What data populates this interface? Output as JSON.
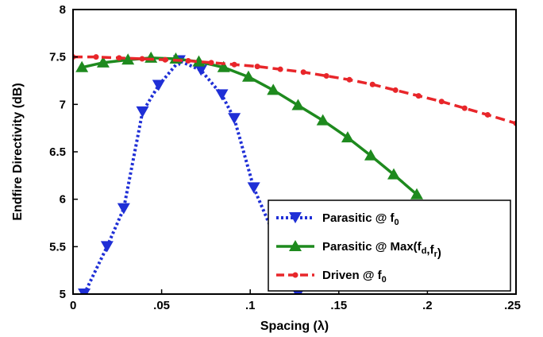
{
  "chart_data": {
    "type": "line",
    "xlabel": "Spacing (λ)",
    "ylabel": "Endfire Directivity (dB)",
    "xlim": [
      0,
      0.25
    ],
    "ylim": [
      5,
      8
    ],
    "x_ticks": [
      0,
      0.05,
      0.1,
      0.15,
      0.2,
      0.25
    ],
    "x_tick_labels": [
      "0",
      ".05",
      ".1",
      ".15",
      ".2",
      ".25"
    ],
    "y_ticks": [
      5,
      5.5,
      6,
      6.5,
      7,
      7.5,
      8
    ],
    "y_tick_labels": [
      "5",
      "5.5",
      "6",
      "6.5",
      "7",
      "7.5",
      "8"
    ],
    "grid": false,
    "legend_position": "bottom-right",
    "series": [
      {
        "name": "Parasitic @ f0",
        "legend_main": "Parasitic @ f",
        "legend_sub": "0",
        "legend_tail": "",
        "color": "#1f2fd6",
        "line_style": "dotted",
        "marker": "triangle-down",
        "x": [
          0.0063,
          0.0192,
          0.0286,
          0.0392,
          0.0483,
          0.06,
          0.0722,
          0.084,
          0.091,
          0.102,
          0.114,
          0.127
        ],
        "y": [
          5.0,
          5.5,
          5.9,
          6.92,
          7.2,
          7.46,
          7.36,
          7.1,
          6.85,
          6.12,
          5.6,
          5.0
        ]
      },
      {
        "name": "Parasitic @ Max(fd,fr)",
        "legend_main": "Parasitic @ Max(f",
        "legend_sub": "d",
        "legend_mid": ",f",
        "legend_sub2": "r",
        "legend_tail": ")",
        "color": "#1e8a1e",
        "line_style": "solid",
        "marker": "triangle-up",
        "x": [
          0.005,
          0.017,
          0.031,
          0.044,
          0.058,
          0.071,
          0.085,
          0.099,
          0.113,
          0.127,
          0.141,
          0.155,
          0.168,
          0.181,
          0.194
        ],
        "y": [
          7.39,
          7.44,
          7.47,
          7.49,
          7.48,
          7.45,
          7.39,
          7.29,
          7.15,
          6.99,
          6.83,
          6.65,
          6.46,
          6.26,
          6.05
        ]
      },
      {
        "name": "Driven @ f0",
        "legend_main": "Driven @ f",
        "legend_sub": "0",
        "legend_tail": "",
        "color": "#e8262a",
        "line_style": "dashed",
        "marker": "dot",
        "x": [
          0.0,
          0.013,
          0.026,
          0.039,
          0.052,
          0.065,
          0.078,
          0.091,
          0.104,
          0.117,
          0.13,
          0.143,
          0.156,
          0.169,
          0.182,
          0.195,
          0.208,
          0.221,
          0.234,
          0.25
        ],
        "y": [
          7.5,
          7.5,
          7.49,
          7.48,
          7.47,
          7.46,
          7.44,
          7.42,
          7.4,
          7.37,
          7.34,
          7.3,
          7.26,
          7.21,
          7.15,
          7.09,
          7.03,
          6.96,
          6.89,
          6.8
        ]
      }
    ]
  }
}
